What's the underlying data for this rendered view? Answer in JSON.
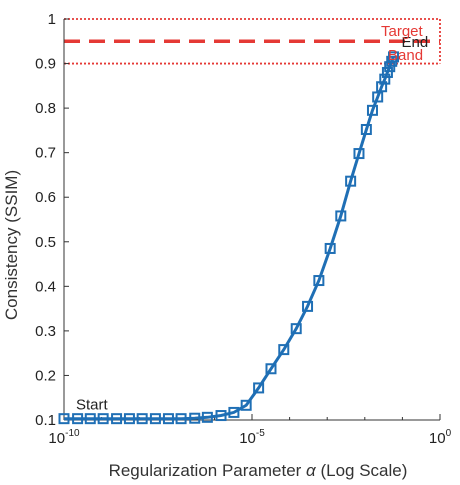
{
  "chart_data": {
    "type": "line",
    "xlabel_prefix": "Regularization  Parameter  ",
    "xlabel_symbol": "α",
    "xlabel_suffix": "  (Log Scale)",
    "ylabel": "Consistency (SSIM)",
    "x_scale": "log",
    "xlim": [
      1e-10,
      1
    ],
    "ylim": [
      0.1,
      1.0
    ],
    "x_ticks": [
      {
        "base": "10",
        "exp": "-10",
        "value": 1e-10
      },
      {
        "base": "10",
        "exp": "-5",
        "value": 1e-05
      },
      {
        "base": "10",
        "exp": "0",
        "value": 1
      }
    ],
    "y_ticks": [
      "0.1",
      "0.2",
      "0.3",
      "0.4",
      "0.5",
      "0.6",
      "0.7",
      "0.8",
      "0.9",
      "1"
    ],
    "y_tick_values": [
      0.1,
      0.2,
      0.3,
      0.4,
      0.5,
      0.6,
      0.7,
      0.8,
      0.9,
      1.0
    ],
    "grid": false,
    "series": [
      {
        "color": "#1f6fb5",
        "marker": "square",
        "x": [
          1e-10,
          2.3e-10,
          5e-10,
          1.1e-09,
          2.5e-09,
          5.5e-09,
          1.2e-08,
          2.7e-08,
          6e-08,
          1.3e-07,
          3e-07,
          6.5e-07,
          1.5e-06,
          3.3e-06,
          7e-06,
          1.5e-05,
          3.2e-05,
          7e-05,
          0.00015,
          0.0003,
          0.0006,
          0.0012,
          0.0023,
          0.0042,
          0.007,
          0.011,
          0.016,
          0.022,
          0.028,
          0.034,
          0.04,
          0.046,
          0.052,
          0.058
        ],
        "y": [
          0.103,
          0.103,
          0.103,
          0.103,
          0.103,
          0.103,
          0.103,
          0.103,
          0.103,
          0.103,
          0.104,
          0.106,
          0.11,
          0.117,
          0.133,
          0.172,
          0.215,
          0.258,
          0.305,
          0.355,
          0.413,
          0.485,
          0.558,
          0.636,
          0.698,
          0.752,
          0.795,
          0.825,
          0.848,
          0.865,
          0.88,
          0.893,
          0.905,
          0.915
        ]
      }
    ],
    "target_band": {
      "lower": 0.9,
      "upper": 1.0,
      "target": 0.95,
      "color": "#e53935"
    },
    "annotations": {
      "start": {
        "text": "Start",
        "x": 1e-10,
        "y": 0.103
      },
      "end": {
        "text": "End",
        "x": 0.058,
        "y": 0.915
      },
      "target": {
        "text": "Target"
      },
      "band": {
        "text": "Band"
      }
    }
  }
}
